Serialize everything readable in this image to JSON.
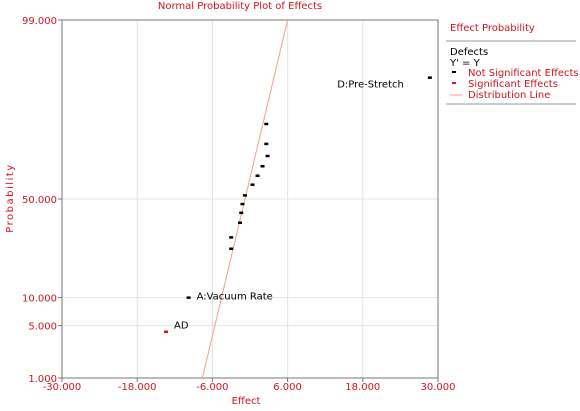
{
  "chart_data": {
    "type": "scatter",
    "title": "Normal Probability Plot of Effects",
    "xlabel": "Effect",
    "ylabel": "Probability",
    "xlim": [
      -30,
      30
    ],
    "x_ticks": [
      -30,
      -18,
      -6,
      6,
      18,
      30
    ],
    "x_tick_labels": [
      "-30.000",
      "-18.000",
      "-6.000",
      "6.000",
      "18.000",
      "30.000"
    ],
    "y_scale": "normal-probability",
    "ylim": [
      1,
      99
    ],
    "y_ticks": [
      1,
      5,
      10,
      50,
      99
    ],
    "y_tick_labels": [
      "1.000",
      "5.000",
      "10.000",
      "50.000",
      "99.000"
    ],
    "grid": true,
    "legend": {
      "position": "right",
      "title": "Effect Probability",
      "heading": "Defects",
      "subheading": "Y' = Y",
      "entries": [
        "Not Significant Effects",
        "Significant Effects",
        "Distribution Line"
      ]
    },
    "colors": {
      "title": "#d4141e",
      "not_significant": "#000000",
      "significant": "#d4141e",
      "distribution_line": "#f2a08f",
      "axis": "#777777",
      "grid": "#e4e4e4"
    },
    "distribution_line": [
      {
        "x": -7.6,
        "y": 1
      },
      {
        "x": 6.0,
        "y": 99
      }
    ],
    "series": [
      {
        "name": "Not Significant Effects",
        "points": [
          {
            "x": 28.7,
            "y": 94.3,
            "label": "D:Pre-Stretch"
          },
          {
            "x": 2.6,
            "y": 83.6
          },
          {
            "x": 2.6,
            "y": 76.4
          },
          {
            "x": 2.8,
            "y": 71.3
          },
          {
            "x": 2.0,
            "y": 66.6
          },
          {
            "x": 1.2,
            "y": 62.0
          },
          {
            "x": 0.4,
            "y": 57.5
          },
          {
            "x": -0.8,
            "y": 52.0
          },
          {
            "x": -1.2,
            "y": 47.5
          },
          {
            "x": -1.4,
            "y": 43.0
          },
          {
            "x": -1.6,
            "y": 38.0
          },
          {
            "x": -3.0,
            "y": 31.0
          },
          {
            "x": -3.0,
            "y": 26.0
          },
          {
            "x": -9.8,
            "y": 10.05,
            "label": "A:Vacuum Rate"
          }
        ]
      },
      {
        "name": "Significant Effects",
        "points": [
          {
            "x": -13.4,
            "y": 4.25,
            "label": "AD"
          }
        ]
      }
    ]
  }
}
